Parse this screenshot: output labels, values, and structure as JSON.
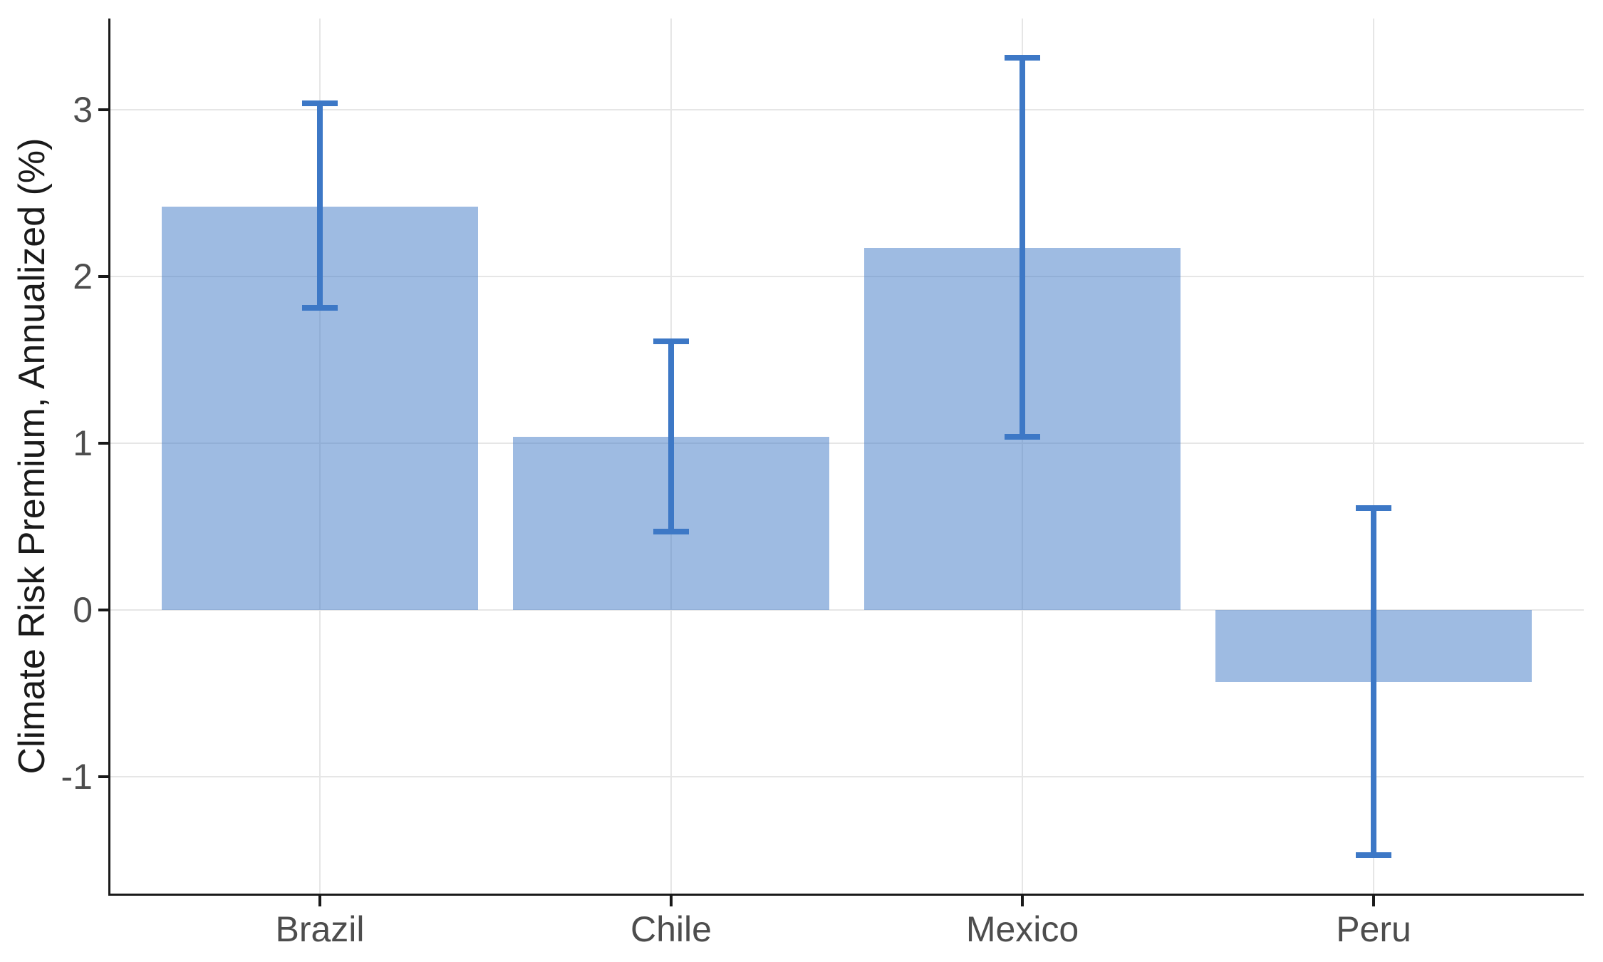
{
  "chart_data": {
    "type": "bar",
    "categories": [
      "Brazil",
      "Chile",
      "Mexico",
      "Peru"
    ],
    "values": [
      2.42,
      1.04,
      2.17,
      -0.43
    ],
    "error_low": [
      1.81,
      0.47,
      1.04,
      -1.47
    ],
    "error_high": [
      3.04,
      1.61,
      3.31,
      0.61
    ],
    "title": "",
    "xlabel": "",
    "ylabel": "Climate Risk Premium, Annualized (%)",
    "yticks": [
      -1,
      0,
      1,
      2,
      3
    ],
    "ylim": [
      -1.71,
      3.55
    ],
    "grid": true,
    "legend": false,
    "error_bars": true,
    "colors": {
      "bar_fill": "rgba(61,120,198,0.5)",
      "error_bar": "#3D78C6",
      "gridline": "#E6E6E6",
      "axis_line": "#1A1A1A",
      "tick_mark": "#1A1A1A",
      "tick_label": "#4D4D4D",
      "axis_title": "#1A1A1A",
      "background": "#FFFFFF"
    }
  }
}
